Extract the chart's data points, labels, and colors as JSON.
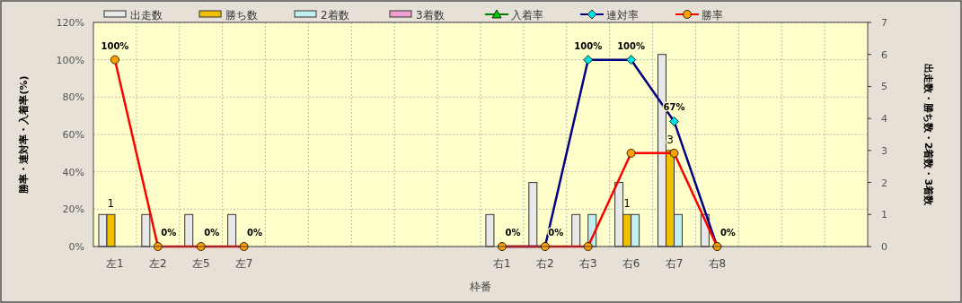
{
  "chart_data": {
    "type": "bar",
    "xlabel": "枠番",
    "ylabel": "勝率・連対率・入着率(%)",
    "y2label": "出走数・勝ち数・2着数・3着数",
    "categories": [
      "左1",
      "左2",
      "左5",
      "左7",
      null,
      null,
      null,
      null,
      null,
      "右1",
      "右2",
      "右3",
      "右6",
      "右7",
      "右8",
      null,
      null,
      null
    ],
    "series": [
      {
        "name": "出走数",
        "axis": "y2",
        "color": "#e8e8e8",
        "values": [
          1,
          1,
          1,
          1,
          null,
          null,
          null,
          null,
          null,
          1,
          2,
          1,
          2,
          6,
          1,
          null,
          null,
          null
        ]
      },
      {
        "name": "勝ち数",
        "axis": "y2",
        "color": "#f0c000",
        "values": [
          1,
          0,
          0,
          0,
          null,
          null,
          null,
          null,
          null,
          0,
          0,
          0,
          1,
          3,
          0,
          null,
          null,
          null
        ],
        "value_labels": [
          "1",
          null,
          null,
          null,
          null,
          null,
          null,
          null,
          null,
          null,
          null,
          null,
          "1",
          "3",
          null,
          null,
          null,
          null
        ]
      },
      {
        "name": "2着数",
        "axis": "y2",
        "color": "#c0f0f0",
        "values": [
          0,
          0,
          0,
          0,
          null,
          null,
          null,
          null,
          null,
          0,
          0,
          1,
          1,
          1,
          0,
          null,
          null,
          null
        ]
      },
      {
        "name": "3着数",
        "axis": "y2",
        "color": "#f0a0d0",
        "values": [
          0,
          0,
          0,
          0,
          null,
          null,
          null,
          null,
          null,
          0,
          0,
          0,
          0,
          0,
          0,
          null,
          null,
          null
        ]
      },
      {
        "name": "入着率",
        "type": "line",
        "marker": "triangle",
        "color": "#008000",
        "values": [
          null,
          null,
          null,
          null,
          null,
          null,
          null,
          null,
          null,
          null,
          null,
          null,
          null,
          null,
          null,
          null,
          null,
          null
        ]
      },
      {
        "name": "連対率",
        "type": "line",
        "marker": "diamond",
        "color": "#000080",
        "values": [
          null,
          null,
          null,
          null,
          null,
          null,
          null,
          null,
          null,
          0,
          0,
          100,
          100,
          67,
          0,
          null,
          null,
          null
        ],
        "value_labels": [
          null,
          null,
          null,
          null,
          null,
          null,
          null,
          null,
          null,
          "0%",
          "0%",
          "100%",
          "100%",
          "67%",
          "0%",
          null,
          null,
          null
        ]
      },
      {
        "name": "勝率",
        "type": "line",
        "marker": "circle",
        "color": "#ff0000",
        "values": [
          100,
          0,
          0,
          0,
          null,
          null,
          null,
          null,
          null,
          0,
          0,
          0,
          50,
          50,
          0,
          null,
          null,
          null
        ],
        "value_labels": [
          "100%",
          "0%",
          "0%",
          "0%",
          null,
          null,
          null,
          null,
          null,
          null,
          null,
          null,
          null,
          null,
          null,
          null,
          null,
          null
        ]
      }
    ],
    "ylim": [
      0,
      120
    ],
    "yticks": [
      {
        "value": 0,
        "label": "0%"
      },
      {
        "value": 20,
        "label": "20%"
      },
      {
        "value": 40,
        "label": "40%"
      },
      {
        "value": 60,
        "label": "60%"
      },
      {
        "value": 80,
        "label": "80%"
      },
      {
        "value": 100,
        "label": "100%"
      },
      {
        "value": 120,
        "label": "120%"
      }
    ],
    "y2lim": [
      0,
      7
    ],
    "y2ticks": [
      0,
      1,
      2,
      3,
      4,
      5,
      6,
      7
    ],
    "grid": true,
    "legend": "top"
  }
}
